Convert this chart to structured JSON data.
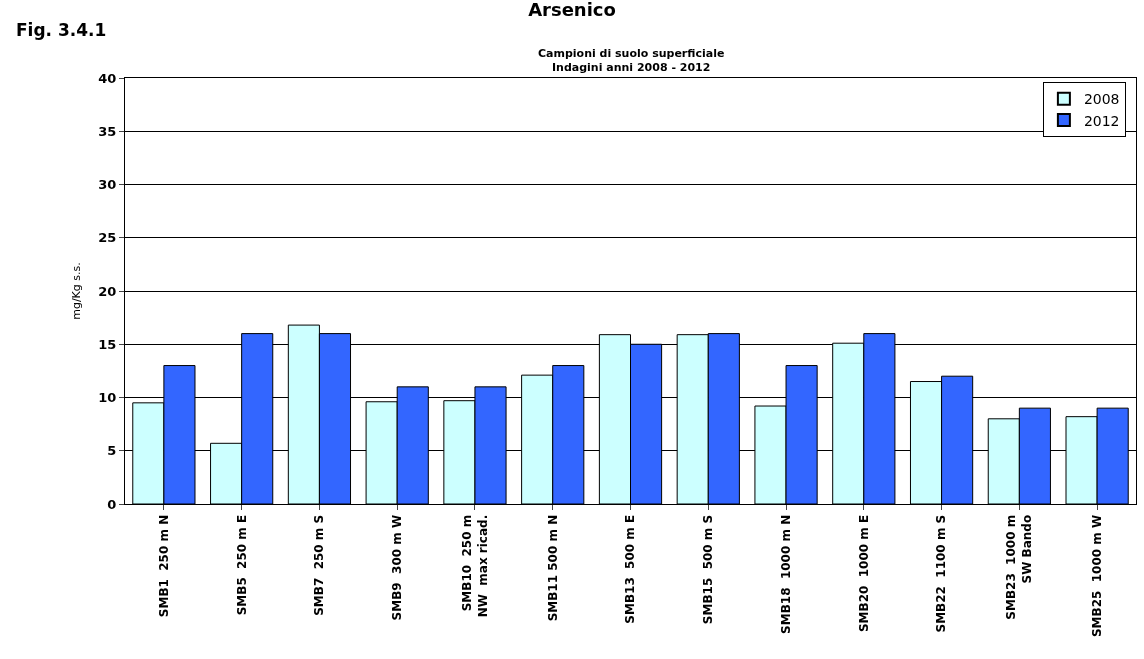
{
  "chart_data": {
    "type": "bar",
    "title": "Arsenico",
    "subtitle": "Campioni di suolo superficiale\nIndagini anni 2008 - 2012",
    "ylabel": "mg/Kg s.s.",
    "annotations": [
      "Fig. 3.4.1"
    ],
    "categories": [
      "SMB1  250 m N",
      "SMB5  250 m E",
      "SMB7  250 m S",
      "SMB9  300 m W",
      "SMB10  250 m\nNW  max ricad.",
      "SMB11 500 m N",
      "SMB13  500 m E",
      "SMB15  500 m S",
      "SMB18  1000 m N",
      "SMB20  1000 m E",
      "SMB22  1100 m S",
      "SMB23  1000 m\nSW Bando",
      "SMB25  1000 m W"
    ],
    "series": [
      {
        "name": "2008",
        "color": "#ccffff",
        "values": [
          9.5,
          5.7,
          16.8,
          9.6,
          9.7,
          12.1,
          15.9,
          15.9,
          9.2,
          15.1,
          11.5,
          8.0,
          8.2
        ]
      },
      {
        "name": "2012",
        "color": "#3366ff",
        "values": [
          13,
          16,
          16,
          11,
          11,
          13,
          15,
          16,
          13,
          16,
          12,
          9,
          9
        ]
      }
    ],
    "ylim": [
      0,
      40
    ],
    "yticks": [
      0,
      5,
      10,
      15,
      20,
      25,
      30,
      35,
      40
    ],
    "grid": "y",
    "legend": "top right"
  }
}
